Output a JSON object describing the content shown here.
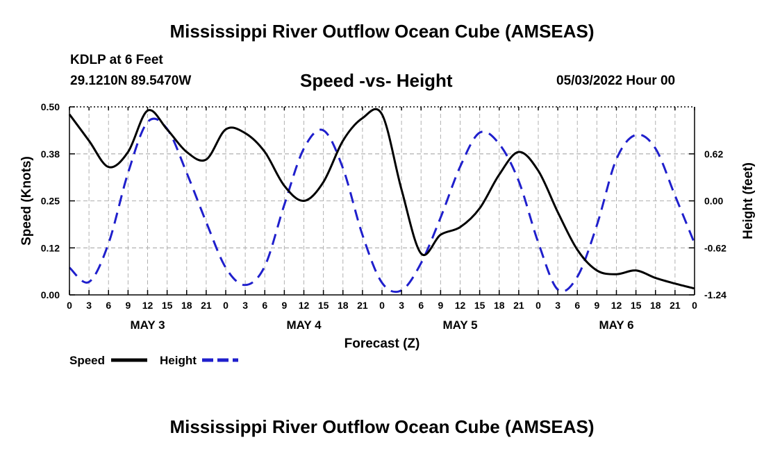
{
  "header": {
    "title": "Mississippi River Outflow Ocean Cube (AMSEAS)",
    "station": "KDLP at 6 Feet",
    "coords": "29.1210N  89.5470W",
    "subtitle": "Speed -vs- Height",
    "datetime": "05/03/2022 Hour 00",
    "footer_title": "Mississippi River Outflow Ocean Cube (AMSEAS)"
  },
  "chart_data": {
    "type": "line",
    "title": "Speed -vs- Height",
    "xlabel": "Forecast (Z)",
    "ylabel": "Speed (Knots)",
    "y2label": "Height (feet)",
    "x_tick_labels": [
      "0",
      "3",
      "6",
      "9",
      "12",
      "15",
      "18",
      "21",
      "0",
      "3",
      "6",
      "9",
      "12",
      "15",
      "18",
      "21",
      "0",
      "3",
      "6",
      "9",
      "12",
      "15",
      "18",
      "21",
      "0",
      "3",
      "6",
      "9",
      "12",
      "15",
      "18",
      "21",
      "0"
    ],
    "day_labels": [
      {
        "hour": 12,
        "label": "MAY 3"
      },
      {
        "hour": 36,
        "label": "MAY 4"
      },
      {
        "hour": 60,
        "label": "MAY 5"
      },
      {
        "hour": 84,
        "label": "MAY 6"
      }
    ],
    "xlim": [
      0,
      96
    ],
    "ylim": [
      0,
      0.5
    ],
    "y_ticks": [
      0.0,
      0.125,
      0.25,
      0.375,
      0.5
    ],
    "y_tick_labels": [
      "0.00",
      "0.12",
      "0.25",
      "0.38",
      "0.50"
    ],
    "y2lim": [
      -1.24,
      1.24
    ],
    "y2_ticks": [
      -1.24,
      -0.62,
      0.0,
      0.62
    ],
    "y2_tick_labels": [
      "-1.24",
      "-0.62",
      "0.00",
      "0.62"
    ],
    "grid": true,
    "legend_position": "bottom-left",
    "series": [
      {
        "name": "Speed",
        "axis": "left",
        "color": "#000000",
        "dash": "solid",
        "x": [
          0,
          3,
          6,
          9,
          12,
          15,
          18,
          21,
          24,
          27,
          30,
          33,
          36,
          39,
          42,
          45,
          48,
          51,
          54,
          57,
          60,
          63,
          66,
          69,
          72,
          75,
          78,
          81,
          84,
          87,
          90,
          93,
          96
        ],
        "values": [
          0.48,
          0.41,
          0.34,
          0.38,
          0.49,
          0.44,
          0.38,
          0.36,
          0.44,
          0.43,
          0.38,
          0.29,
          0.25,
          0.3,
          0.41,
          0.47,
          0.48,
          0.28,
          0.11,
          0.16,
          0.18,
          0.23,
          0.32,
          0.38,
          0.33,
          0.22,
          0.12,
          0.065,
          0.055,
          0.065,
          0.045,
          0.03,
          0.017
        ]
      },
      {
        "name": "Height",
        "axis": "right",
        "color": "#1f1fcc",
        "dash": "dashed",
        "x": [
          0,
          3,
          6,
          9,
          12,
          15,
          18,
          21,
          24,
          27,
          30,
          33,
          36,
          39,
          42,
          45,
          48,
          51,
          54,
          57,
          60,
          63,
          66,
          69,
          72,
          75,
          78,
          81,
          84,
          87,
          90,
          93,
          96
        ],
        "values": [
          -0.88,
          -1.07,
          -0.56,
          0.37,
          1.04,
          0.95,
          0.37,
          -0.28,
          -0.88,
          -1.11,
          -0.86,
          -0.05,
          0.69,
          0.93,
          0.43,
          -0.45,
          -1.08,
          -1.18,
          -0.82,
          -0.22,
          0.45,
          0.9,
          0.75,
          0.26,
          -0.55,
          -1.17,
          -1.0,
          -0.32,
          0.55,
          0.87,
          0.69,
          0.07,
          -0.56
        ]
      }
    ]
  }
}
